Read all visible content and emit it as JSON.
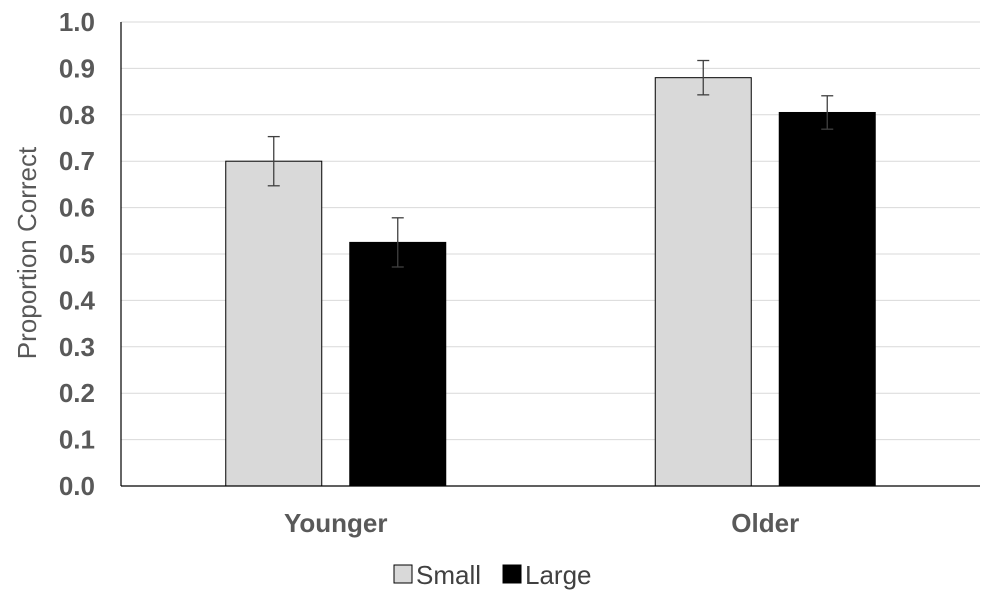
{
  "chart_data": {
    "type": "bar",
    "title": "",
    "xlabel": "",
    "ylabel": "Proportion Correct",
    "ylim": [
      0,
      1.0
    ],
    "yticks": [
      "0.0",
      "0.1",
      "0.2",
      "0.3",
      "0.4",
      "0.5",
      "0.6",
      "0.7",
      "0.8",
      "0.9",
      "1.0"
    ],
    "categories": [
      "Younger",
      "Older"
    ],
    "grid": true,
    "legend_position": "bottom",
    "series": [
      {
        "name": "Small",
        "color": "#d9d9d9",
        "values": [
          0.7,
          0.88
        ],
        "error": [
          0.053,
          0.037
        ]
      },
      {
        "name": "Large",
        "color": "#000000",
        "values": [
          0.525,
          0.805
        ],
        "error": [
          0.053,
          0.036
        ]
      }
    ]
  }
}
